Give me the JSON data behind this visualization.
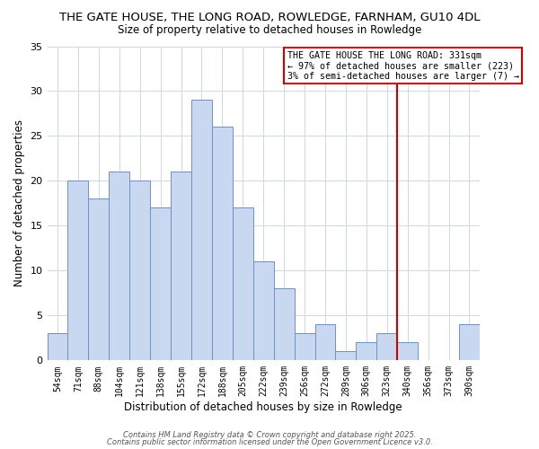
{
  "title": "THE GATE HOUSE, THE LONG ROAD, ROWLEDGE, FARNHAM, GU10 4DL",
  "subtitle": "Size of property relative to detached houses in Rowledge",
  "xlabel": "Distribution of detached houses by size in Rowledge",
  "ylabel": "Number of detached properties",
  "bar_color": "#c8d8f0",
  "bar_edge_color": "#7090c0",
  "grid_color": "#d0d8e0",
  "background_color": "#ffffff",
  "categories": [
    "54sqm",
    "71sqm",
    "88sqm",
    "104sqm",
    "121sqm",
    "138sqm",
    "155sqm",
    "172sqm",
    "188sqm",
    "205sqm",
    "222sqm",
    "239sqm",
    "256sqm",
    "272sqm",
    "289sqm",
    "306sqm",
    "323sqm",
    "340sqm",
    "356sqm",
    "373sqm",
    "390sqm"
  ],
  "values": [
    3,
    20,
    18,
    21,
    20,
    17,
    21,
    29,
    26,
    17,
    11,
    8,
    3,
    4,
    1,
    2,
    3,
    2,
    0,
    0,
    4
  ],
  "vline_x": 16.47,
  "vline_color": "#cc0000",
  "annotation_text": "THE GATE HOUSE THE LONG ROAD: 331sqm\n← 97% of detached houses are smaller (223)\n3% of semi-detached houses are larger (7) →",
  "annotation_box_color": "#ffffff",
  "annotation_box_edge_color": "#cc0000",
  "ylim": [
    0,
    35
  ],
  "yticks": [
    0,
    5,
    10,
    15,
    20,
    25,
    30,
    35
  ],
  "footer1": "Contains HM Land Registry data © Crown copyright and database right 2025.",
  "footer2": "Contains public sector information licensed under the Open Government Licence v3.0."
}
